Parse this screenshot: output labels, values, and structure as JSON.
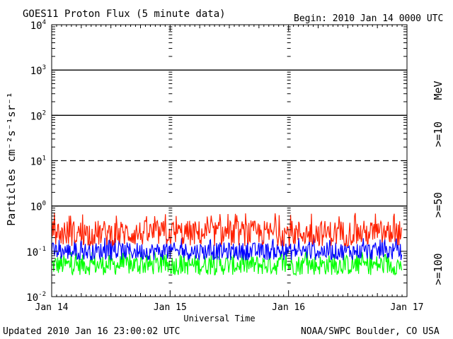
{
  "header": {
    "title": "GOES11 Proton Flux (5 minute data)",
    "begin": "Begin: 2010 Jan 14 0000 UTC"
  },
  "footer": {
    "updated": "Updated 2010 Jan 16 23:00:02 UTC",
    "credit": "NOAA/SWPC Boulder, CO USA"
  },
  "chart_data": {
    "type": "line",
    "title": "GOES11 Proton Flux (5 minute data)",
    "xlabel": "Universal Time",
    "ylabel": "Particles cm⁻²s⁻¹sr⁻¹",
    "y_scale": "log",
    "ylim": [
      0.01,
      10000
    ],
    "xlim_days": [
      "Jan 14",
      "Jan 17"
    ],
    "x_ticks": [
      "Jan 14",
      "Jan 15",
      "Jan 16",
      "Jan 17"
    ],
    "y_ticks": [
      {
        "base": "10",
        "exp": "-2"
      },
      {
        "base": "10",
        "exp": "-1"
      },
      {
        "base": "10",
        "exp": "0"
      },
      {
        "base": "10",
        "exp": "1"
      },
      {
        "base": "10",
        "exp": "2"
      },
      {
        "base": "10",
        "exp": "3"
      },
      {
        "base": "10",
        "exp": "4"
      }
    ],
    "threshold_lines": [
      {
        "value": 1000,
        "style": "solid"
      },
      {
        "value": 100,
        "style": "solid"
      },
      {
        "value": 10,
        "style": "dashed"
      },
      {
        "value": 1,
        "style": "solid"
      }
    ],
    "grid": false,
    "legend_unit": "MeV",
    "legend_position": "right",
    "series": [
      {
        "name": ">=10",
        "color": "#ff2000",
        "typical": 0.25,
        "range": [
          0.12,
          0.7
        ]
      },
      {
        "name": ">=50",
        "color": "#0000ff",
        "typical": 0.1,
        "range": [
          0.06,
          0.2
        ]
      },
      {
        "name": ">=100",
        "color": "#00ff00",
        "typical": 0.05,
        "range": [
          0.025,
          0.1
        ]
      }
    ]
  }
}
